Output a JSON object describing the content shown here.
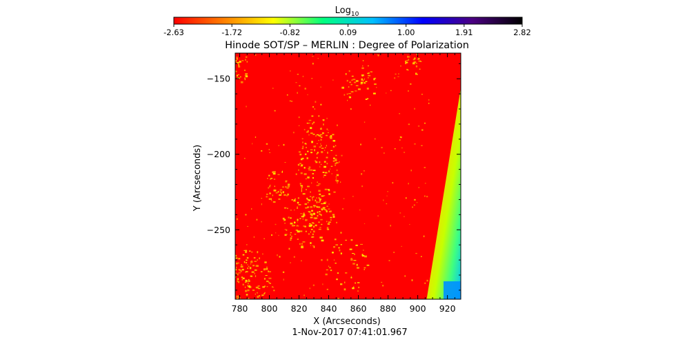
{
  "colorbar": {
    "label_base": "Log",
    "label_sub": "10",
    "ticks": [
      "-2.63",
      "-1.72",
      "-0.82",
      "0.09",
      "1.00",
      "1.91",
      "2.82"
    ],
    "colormap": [
      "#ff0000",
      "#ff7f00",
      "#ffff00",
      "#00ff7f",
      "#00bfff",
      "#0000ff",
      "#4b0082",
      "#000000"
    ]
  },
  "footer": {
    "timestamp": "1-Nov-2017 07:41:01.967"
  },
  "chart_data": {
    "type": "heatmap",
    "title": "Hinode SOT/SP – MERLIN : Degree of Polarization",
    "xlabel": "X (Arcseconds)",
    "ylabel": "Y (Arcseconds)",
    "xlim": [
      777,
      929
    ],
    "ylim": [
      -296,
      -133
    ],
    "x_ticks": [
      780,
      800,
      820,
      840,
      860,
      880,
      900,
      920
    ],
    "y_ticks": [
      -150,
      -200,
      -250
    ],
    "value_range": [
      -2.63,
      2.82
    ],
    "limb_boundary": [
      {
        "x": 929,
        "y": -156
      },
      {
        "x": 906,
        "y": -296
      }
    ]
  }
}
